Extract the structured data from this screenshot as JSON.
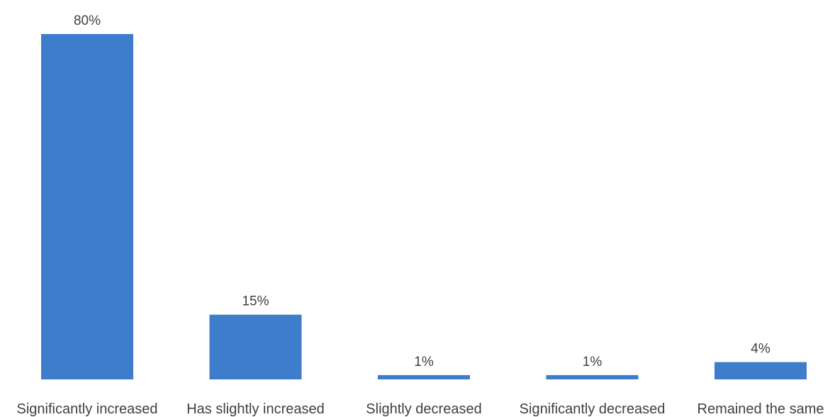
{
  "chart_data": {
    "type": "bar",
    "categories": [
      "Significantly increased",
      "Has slightly increased",
      "Slightly decreased",
      "Significantly decreased",
      "Remained the same"
    ],
    "values": [
      80,
      15,
      1,
      1,
      4
    ],
    "value_labels": [
      "80%",
      "15%",
      "1%",
      "1%",
      "4%"
    ],
    "unit": "%",
    "ylim": [
      0,
      80
    ],
    "grid": false,
    "legend": "none",
    "bar_color": "#3d7dcb",
    "text_color": "#404040"
  }
}
